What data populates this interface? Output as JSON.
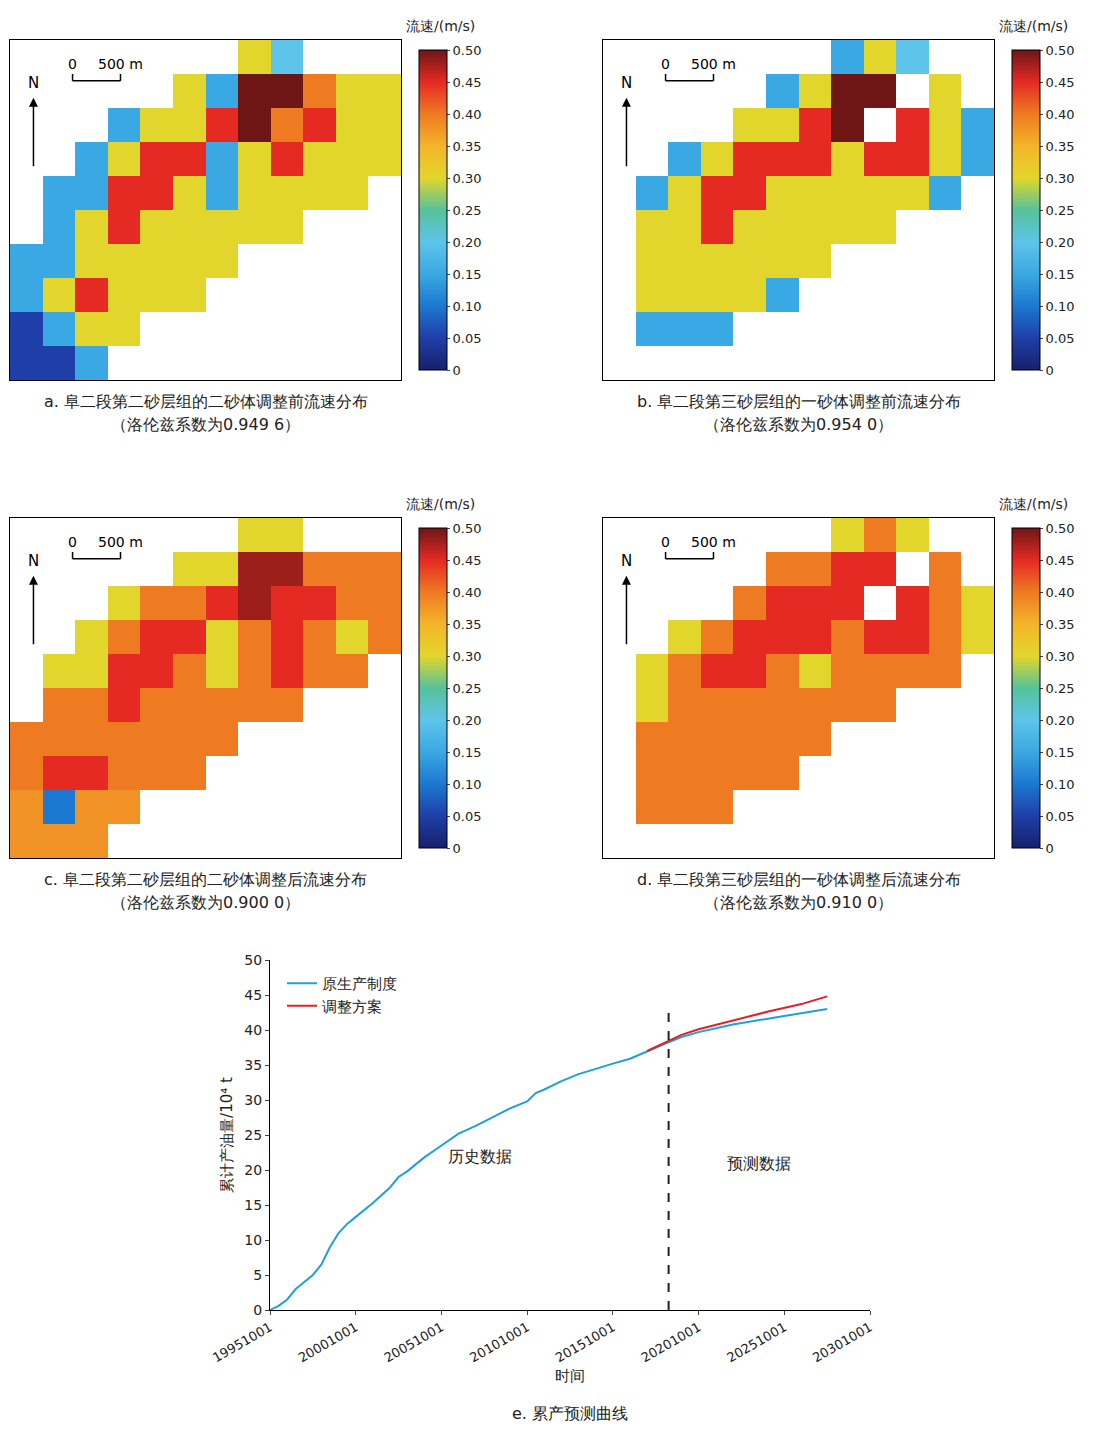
{
  "chart_data": [
    {
      "type": "heatmap",
      "caption": "a. 阜二段第二砂层组的二砂体调整前流速分布",
      "note": "（洛伦兹系数为0.949 6）",
      "colorbar_title": "流速/(m/s)",
      "zlim": [
        0,
        0.5
      ],
      "zticks": [
        0,
        0.05,
        {
          "value": 0.1,
          "label": "0.10"
        },
        0.15,
        {
          "value": 0.2,
          "label": "0.20"
        },
        0.25,
        {
          "value": 0.3,
          "label": "0.30"
        },
        0.35,
        {
          "value": 0.4,
          "label": "0.40"
        },
        0.45,
        {
          "value": 0.5,
          "label": "0.50"
        }
      ],
      "x0": 170,
      "dx": 340,
      "y0": 3230,
      "dy": -340,
      "xlim": [
        0,
        4080
      ],
      "ylim": [
        0,
        3400
      ],
      "tick_labels": false,
      "north_label": "N",
      "scale_bar": [
        0,
        {
          "value": 500,
          "label": "500 m"
        }
      ],
      "cells": [
        [
          null,
          null,
          null,
          null,
          null,
          null,
          null,
          0.3,
          0.2,
          null,
          null,
          null
        ],
        [
          null,
          null,
          null,
          null,
          null,
          0.3,
          0.15,
          0.5,
          0.5,
          0.4,
          0.3,
          0.3
        ],
        [
          null,
          null,
          null,
          0.15,
          0.3,
          0.3,
          0.45,
          0.5,
          0.4,
          0.45,
          0.3,
          0.3
        ],
        [
          null,
          null,
          0.15,
          0.3,
          0.45,
          0.45,
          0.15,
          0.3,
          0.45,
          0.3,
          0.3,
          0.3
        ],
        [
          null,
          0.15,
          0.15,
          0.45,
          0.45,
          0.3,
          0.15,
          0.3,
          0.3,
          0.3,
          0.3,
          null
        ],
        [
          null,
          0.15,
          0.3,
          0.45,
          0.3,
          0.3,
          0.3,
          0.3,
          0.3,
          null,
          null,
          null
        ],
        [
          0.15,
          0.15,
          0.3,
          0.3,
          0.3,
          0.3,
          0.3,
          null,
          null,
          null,
          null,
          null
        ],
        [
          0.15,
          0.3,
          0.45,
          0.3,
          0.3,
          0.3,
          null,
          null,
          null,
          null,
          null,
          null
        ],
        [
          0.05,
          0.15,
          0.3,
          0.3,
          null,
          null,
          null,
          null,
          null,
          null,
          null,
          null
        ],
        [
          0.05,
          0.05,
          0.15,
          null,
          null,
          null,
          null,
          null,
          null,
          null,
          null,
          null
        ]
      ]
    },
    {
      "type": "heatmap",
      "caption": "b. 阜二段第三砂层组的一砂体调整前流速分布",
      "note": "（洛伦兹系数为0.954 0）",
      "colorbar_title": "流速/(m/s)",
      "zlim": [
        0,
        0.5
      ],
      "zticks": [
        0,
        0.05,
        {
          "value": 0.1,
          "label": "0.10"
        },
        0.15,
        {
          "value": 0.2,
          "label": "0.20"
        },
        0.25,
        {
          "value": 0.3,
          "label": "0.30"
        },
        0.35,
        {
          "value": 0.4,
          "label": "0.40"
        },
        0.45,
        {
          "value": 0.5,
          "label": "0.50"
        }
      ],
      "x0": 170,
      "dx": 340,
      "y0": 3230,
      "dy": -340,
      "xlim": [
        0,
        4080
      ],
      "ylim": [
        0,
        3400
      ],
      "tick_labels": false,
      "north_label": "N",
      "scale_bar": [
        0,
        {
          "value": 500,
          "label": "500 m"
        }
      ],
      "cells": [
        [
          null,
          null,
          null,
          null,
          null,
          null,
          null,
          0.15,
          0.3,
          0.2,
          null,
          null
        ],
        [
          null,
          null,
          null,
          null,
          null,
          0.15,
          0.3,
          0.5,
          0.5,
          null,
          0.3,
          null
        ],
        [
          null,
          null,
          null,
          null,
          0.3,
          0.3,
          0.45,
          0.5,
          null,
          0.45,
          0.3,
          0.15
        ],
        [
          null,
          null,
          0.15,
          0.3,
          0.45,
          0.45,
          0.45,
          0.3,
          0.45,
          0.45,
          0.3,
          0.15
        ],
        [
          null,
          0.15,
          0.3,
          0.45,
          0.45,
          0.3,
          0.3,
          0.3,
          0.3,
          0.3,
          0.15,
          null
        ],
        [
          null,
          0.3,
          0.3,
          0.45,
          0.3,
          0.3,
          0.3,
          0.3,
          0.3,
          null,
          null,
          null
        ],
        [
          null,
          0.3,
          0.3,
          0.3,
          0.3,
          0.3,
          0.3,
          null,
          null,
          null,
          null,
          null
        ],
        [
          null,
          0.3,
          0.3,
          0.3,
          0.3,
          0.15,
          null,
          null,
          null,
          null,
          null,
          null
        ],
        [
          null,
          0.15,
          0.15,
          0.15,
          null,
          null,
          null,
          null,
          null,
          null,
          null,
          null
        ],
        [
          null,
          null,
          null,
          null,
          null,
          null,
          null,
          null,
          null,
          null,
          null,
          null
        ]
      ]
    },
    {
      "type": "heatmap",
      "caption": "c. 阜二段第二砂层组的二砂体调整后流速分布",
      "note": "（洛伦兹系数为0.900 0）",
      "colorbar_title": "流速/(m/s)",
      "zlim": [
        0,
        0.5
      ],
      "zticks": [
        0,
        0.05,
        {
          "value": 0.1,
          "label": "0.10"
        },
        0.15,
        {
          "value": 0.2,
          "label": "0.20"
        },
        0.25,
        {
          "value": 0.3,
          "label": "0.30"
        },
        0.35,
        {
          "value": 0.4,
          "label": "0.40"
        },
        0.45,
        {
          "value": 0.5,
          "label": "0.50"
        }
      ],
      "x0": 170,
      "dx": 340,
      "y0": 3230,
      "dy": -340,
      "xlim": [
        0,
        4080
      ],
      "ylim": [
        0,
        3400
      ],
      "tick_labels": false,
      "north_label": "N",
      "scale_bar": [
        0,
        {
          "value": 500,
          "label": "500 m"
        }
      ],
      "cells": [
        [
          null,
          null,
          null,
          null,
          null,
          null,
          null,
          0.3,
          0.3,
          null,
          null,
          null
        ],
        [
          null,
          null,
          null,
          null,
          null,
          0.3,
          0.3,
          0.48,
          0.48,
          0.4,
          0.4,
          0.4
        ],
        [
          null,
          null,
          null,
          0.3,
          0.4,
          0.4,
          0.45,
          0.48,
          0.45,
          0.45,
          0.4,
          0.4
        ],
        [
          null,
          null,
          0.3,
          0.4,
          0.45,
          0.45,
          0.3,
          0.4,
          0.45,
          0.4,
          0.3,
          0.4
        ],
        [
          null,
          0.3,
          0.3,
          0.45,
          0.45,
          0.4,
          0.3,
          0.4,
          0.45,
          0.4,
          0.4,
          null
        ],
        [
          null,
          0.4,
          0.4,
          0.45,
          0.4,
          0.4,
          0.4,
          0.4,
          0.4,
          null,
          null,
          null
        ],
        [
          0.4,
          0.4,
          0.4,
          0.4,
          0.4,
          0.4,
          0.4,
          null,
          null,
          null,
          null,
          null
        ],
        [
          0.4,
          0.45,
          0.45,
          0.4,
          0.4,
          0.4,
          null,
          null,
          null,
          null,
          null,
          null
        ],
        [
          0.38,
          0.1,
          0.38,
          0.38,
          null,
          null,
          null,
          null,
          null,
          null,
          null,
          null
        ],
        [
          0.38,
          0.38,
          0.38,
          null,
          null,
          null,
          null,
          null,
          null,
          null,
          null,
          null
        ]
      ]
    },
    {
      "type": "heatmap",
      "caption": "d. 阜二段第三砂层组的一砂体调整后流速分布",
      "note": "（洛伦兹系数为0.910 0）",
      "colorbar_title": "流速/(m/s)",
      "zlim": [
        0,
        0.5
      ],
      "zticks": [
        0,
        0.05,
        {
          "value": 0.1,
          "label": "0.10"
        },
        0.15,
        {
          "value": 0.2,
          "label": "0.20"
        },
        0.25,
        {
          "value": 0.3,
          "label": "0.30"
        },
        0.35,
        {
          "value": 0.4,
          "label": "0.40"
        },
        0.45,
        {
          "value": 0.5,
          "label": "0.50"
        }
      ],
      "x0": 170,
      "dx": 340,
      "y0": 3230,
      "dy": -340,
      "xlim": [
        0,
        4080
      ],
      "ylim": [
        0,
        3400
      ],
      "tick_labels": false,
      "north_label": "N",
      "scale_bar": [
        0,
        {
          "value": 500,
          "label": "500 m"
        }
      ],
      "cells": [
        [
          null,
          null,
          null,
          null,
          null,
          null,
          null,
          0.3,
          0.4,
          0.3,
          null,
          null
        ],
        [
          null,
          null,
          null,
          null,
          null,
          0.4,
          0.4,
          0.45,
          0.45,
          null,
          0.4,
          null
        ],
        [
          null,
          null,
          null,
          null,
          0.4,
          0.45,
          0.45,
          0.45,
          null,
          0.45,
          0.4,
          0.3
        ],
        [
          null,
          null,
          0.3,
          0.4,
          0.45,
          0.45,
          0.45,
          0.4,
          0.45,
          0.45,
          0.4,
          0.3
        ],
        [
          null,
          0.3,
          0.4,
          0.45,
          0.45,
          0.4,
          0.3,
          0.4,
          0.4,
          0.4,
          0.4,
          null
        ],
        [
          null,
          0.3,
          0.4,
          0.4,
          0.4,
          0.4,
          0.4,
          0.4,
          0.4,
          null,
          null,
          null
        ],
        [
          null,
          0.4,
          0.4,
          0.4,
          0.4,
          0.4,
          0.4,
          null,
          null,
          null,
          null,
          null
        ],
        [
          null,
          0.4,
          0.4,
          0.4,
          0.4,
          0.4,
          null,
          null,
          null,
          null,
          null,
          null
        ],
        [
          null,
          0.4,
          0.4,
          0.4,
          null,
          null,
          null,
          null,
          null,
          null,
          null,
          null
        ],
        [
          null,
          null,
          null,
          null,
          null,
          null,
          null,
          null,
          null,
          null,
          null,
          null
        ]
      ]
    },
    {
      "type": "line",
      "caption": "e. 累产预测曲线",
      "x_label": "时间",
      "y_label": "累计产油量/10⁴ t",
      "xlim": [
        "1995-10-01",
        "2030-10-01"
      ],
      "xticks": [
        {
          "value": "1995-10-01",
          "label": "19951001"
        },
        {
          "value": "2000-10-01",
          "label": "20001001"
        },
        {
          "value": "2005-10-01",
          "label": "20051001"
        },
        {
          "value": "2010-10-01",
          "label": "20101001"
        },
        {
          "value": "2015-10-01",
          "label": "20151001"
        },
        {
          "value": "2020-10-01",
          "label": "20201001"
        },
        {
          "value": "2025-10-01",
          "label": "20251001"
        },
        {
          "value": "2030-10-01",
          "label": "20301001"
        }
      ],
      "ylim": [
        0,
        50
      ],
      "yticks": [
        0,
        5,
        10,
        15,
        20,
        25,
        30,
        35,
        40,
        45,
        50
      ],
      "grid": false,
      "legend": "upper left",
      "series": [
        {
          "name": "原生产制度",
          "color": "#1ea0dc",
          "line_style": "solid",
          "x": [
            "1995-10-01",
            "1996-04-01",
            "1996-10-01",
            "1997-04-01",
            "1997-10-01",
            "1998-04-01",
            "1998-10-01",
            "1999-04-01",
            "1999-10-01",
            "2000-04-01",
            "2000-10-01",
            "2001-10-01",
            "2002-10-01",
            "2003-04-01",
            "2003-10-01",
            "2004-10-01",
            "2005-10-01",
            "2006-10-01",
            "2007-10-01",
            "2008-10-01",
            "2009-10-01",
            "2010-10-01",
            "2011-04-01",
            "2011-10-01",
            "2012-10-01",
            "2013-10-01",
            "2014-10-01",
            "2015-10-01",
            "2016-10-01",
            "2017-10-01",
            "2018-10-01",
            "2019-10-01",
            "2020-10-01",
            "2022-10-01",
            "2024-10-01",
            "2026-10-01",
            "2028-04-01"
          ],
          "values": [
            0,
            0.6,
            1.5,
            3,
            4,
            5,
            6.5,
            9,
            11,
            12.3,
            13.3,
            15.3,
            17.5,
            19,
            19.8,
            21.8,
            23.5,
            25.2,
            26.3,
            27.5,
            28.8,
            29.8,
            31,
            31.5,
            32.7,
            33.7,
            34.5,
            35.2,
            35.9,
            37,
            38,
            39,
            39.7,
            40.8,
            41.6,
            42.4,
            43
          ]
        },
        {
          "name": "调整方案",
          "color": "#e0202a",
          "line_style": "solid",
          "x": [
            "2017-10-01",
            "2018-10-01",
            "2019-10-01",
            "2020-10-01",
            "2022-10-01",
            "2024-10-01",
            "2026-10-01",
            "2028-04-01"
          ],
          "values": [
            37,
            38.2,
            39.3,
            40.1,
            41.4,
            42.6,
            43.7,
            44.8
          ]
        }
      ],
      "divider": {
        "x": "2019-01-01",
        "y": [
          0,
          43
        ],
        "line_style": "dash"
      },
      "annotations": [
        {
          "text": "历史数据",
          "x": "2008-01-01",
          "y": 22
        },
        {
          "text": "预测数据",
          "x": "2024-04-01",
          "y": 21
        }
      ]
    }
  ]
}
